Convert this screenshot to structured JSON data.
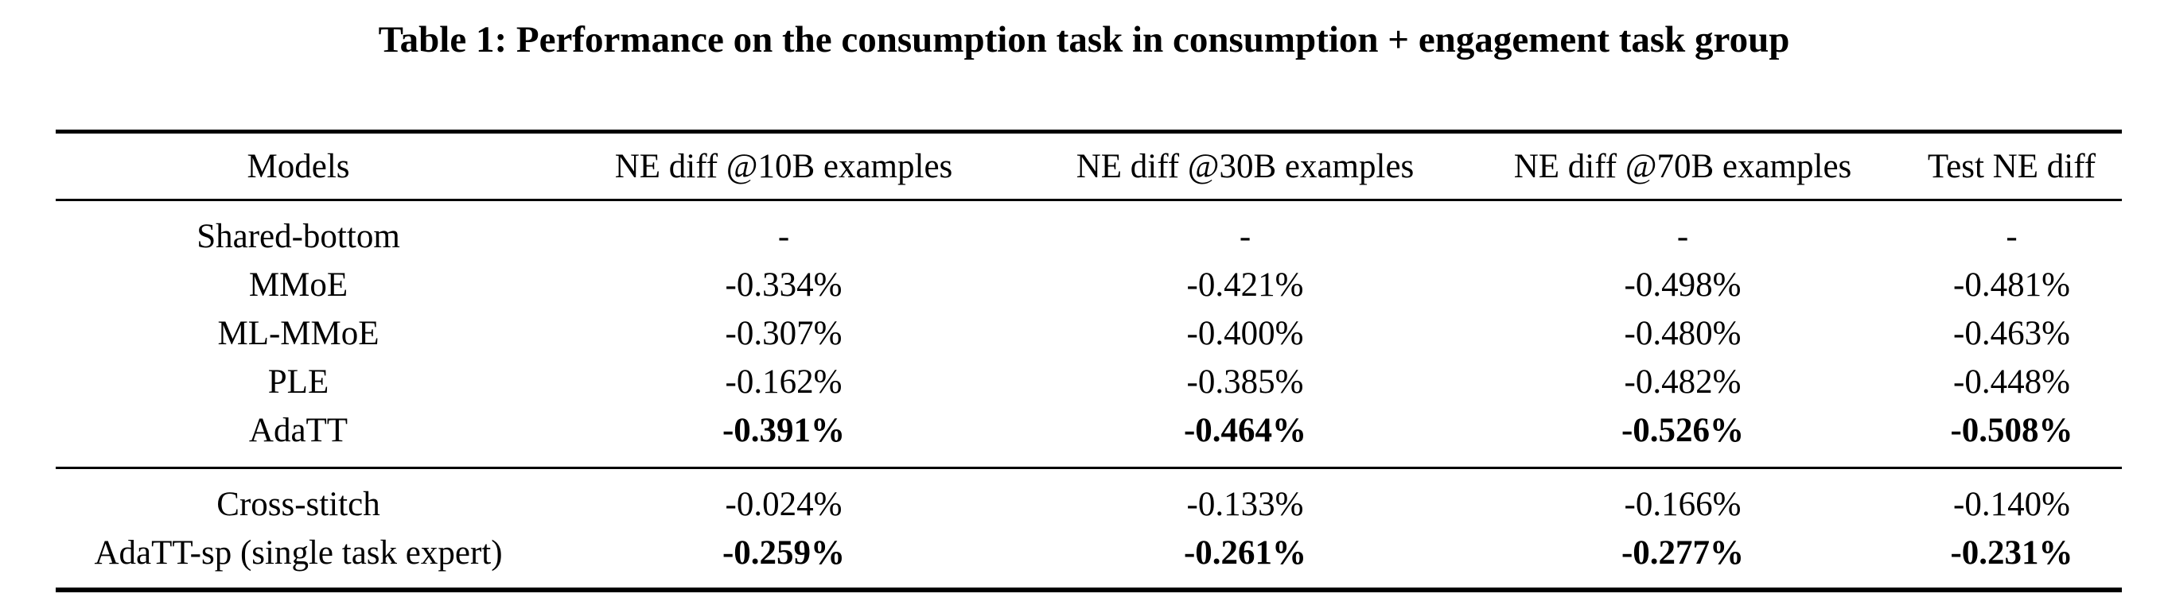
{
  "page": {
    "title": "Table 1: Performance on the consumption task in consumption + engagement task group"
  },
  "colors": {
    "text": "#000000",
    "background": "#ffffff",
    "rule": "#000000"
  },
  "table": {
    "columns": [
      "Models",
      "NE diff @10B examples",
      "NE diff @30B examples",
      "NE diff @70B examples",
      "Test NE diff"
    ],
    "groups": [
      {
        "rows": [
          {
            "model": "Shared-bottom",
            "bold": false,
            "values": [
              "-",
              "-",
              "-",
              "-"
            ]
          },
          {
            "model": "MMoE",
            "bold": false,
            "values": [
              "-0.334%",
              "-0.421%",
              "-0.498%",
              "-0.481%"
            ]
          },
          {
            "model": "ML-MMoE",
            "bold": false,
            "values": [
              "-0.307%",
              "-0.400%",
              "-0.480%",
              "-0.463%"
            ]
          },
          {
            "model": "PLE",
            "bold": false,
            "values": [
              "-0.162%",
              "-0.385%",
              "-0.482%",
              "-0.448%"
            ]
          },
          {
            "model": "AdaTT",
            "bold": true,
            "values": [
              "-0.391%",
              "-0.464%",
              "-0.526%",
              "-0.508%"
            ]
          }
        ]
      },
      {
        "rows": [
          {
            "model": "Cross-stitch",
            "bold": false,
            "values": [
              "-0.024%",
              "-0.133%",
              "-0.166%",
              "-0.140%"
            ]
          },
          {
            "model": "AdaTT-sp (single task expert)",
            "bold": true,
            "values": [
              "-0.259%",
              "-0.261%",
              "-0.277%",
              "-0.231%"
            ]
          }
        ]
      }
    ]
  }
}
